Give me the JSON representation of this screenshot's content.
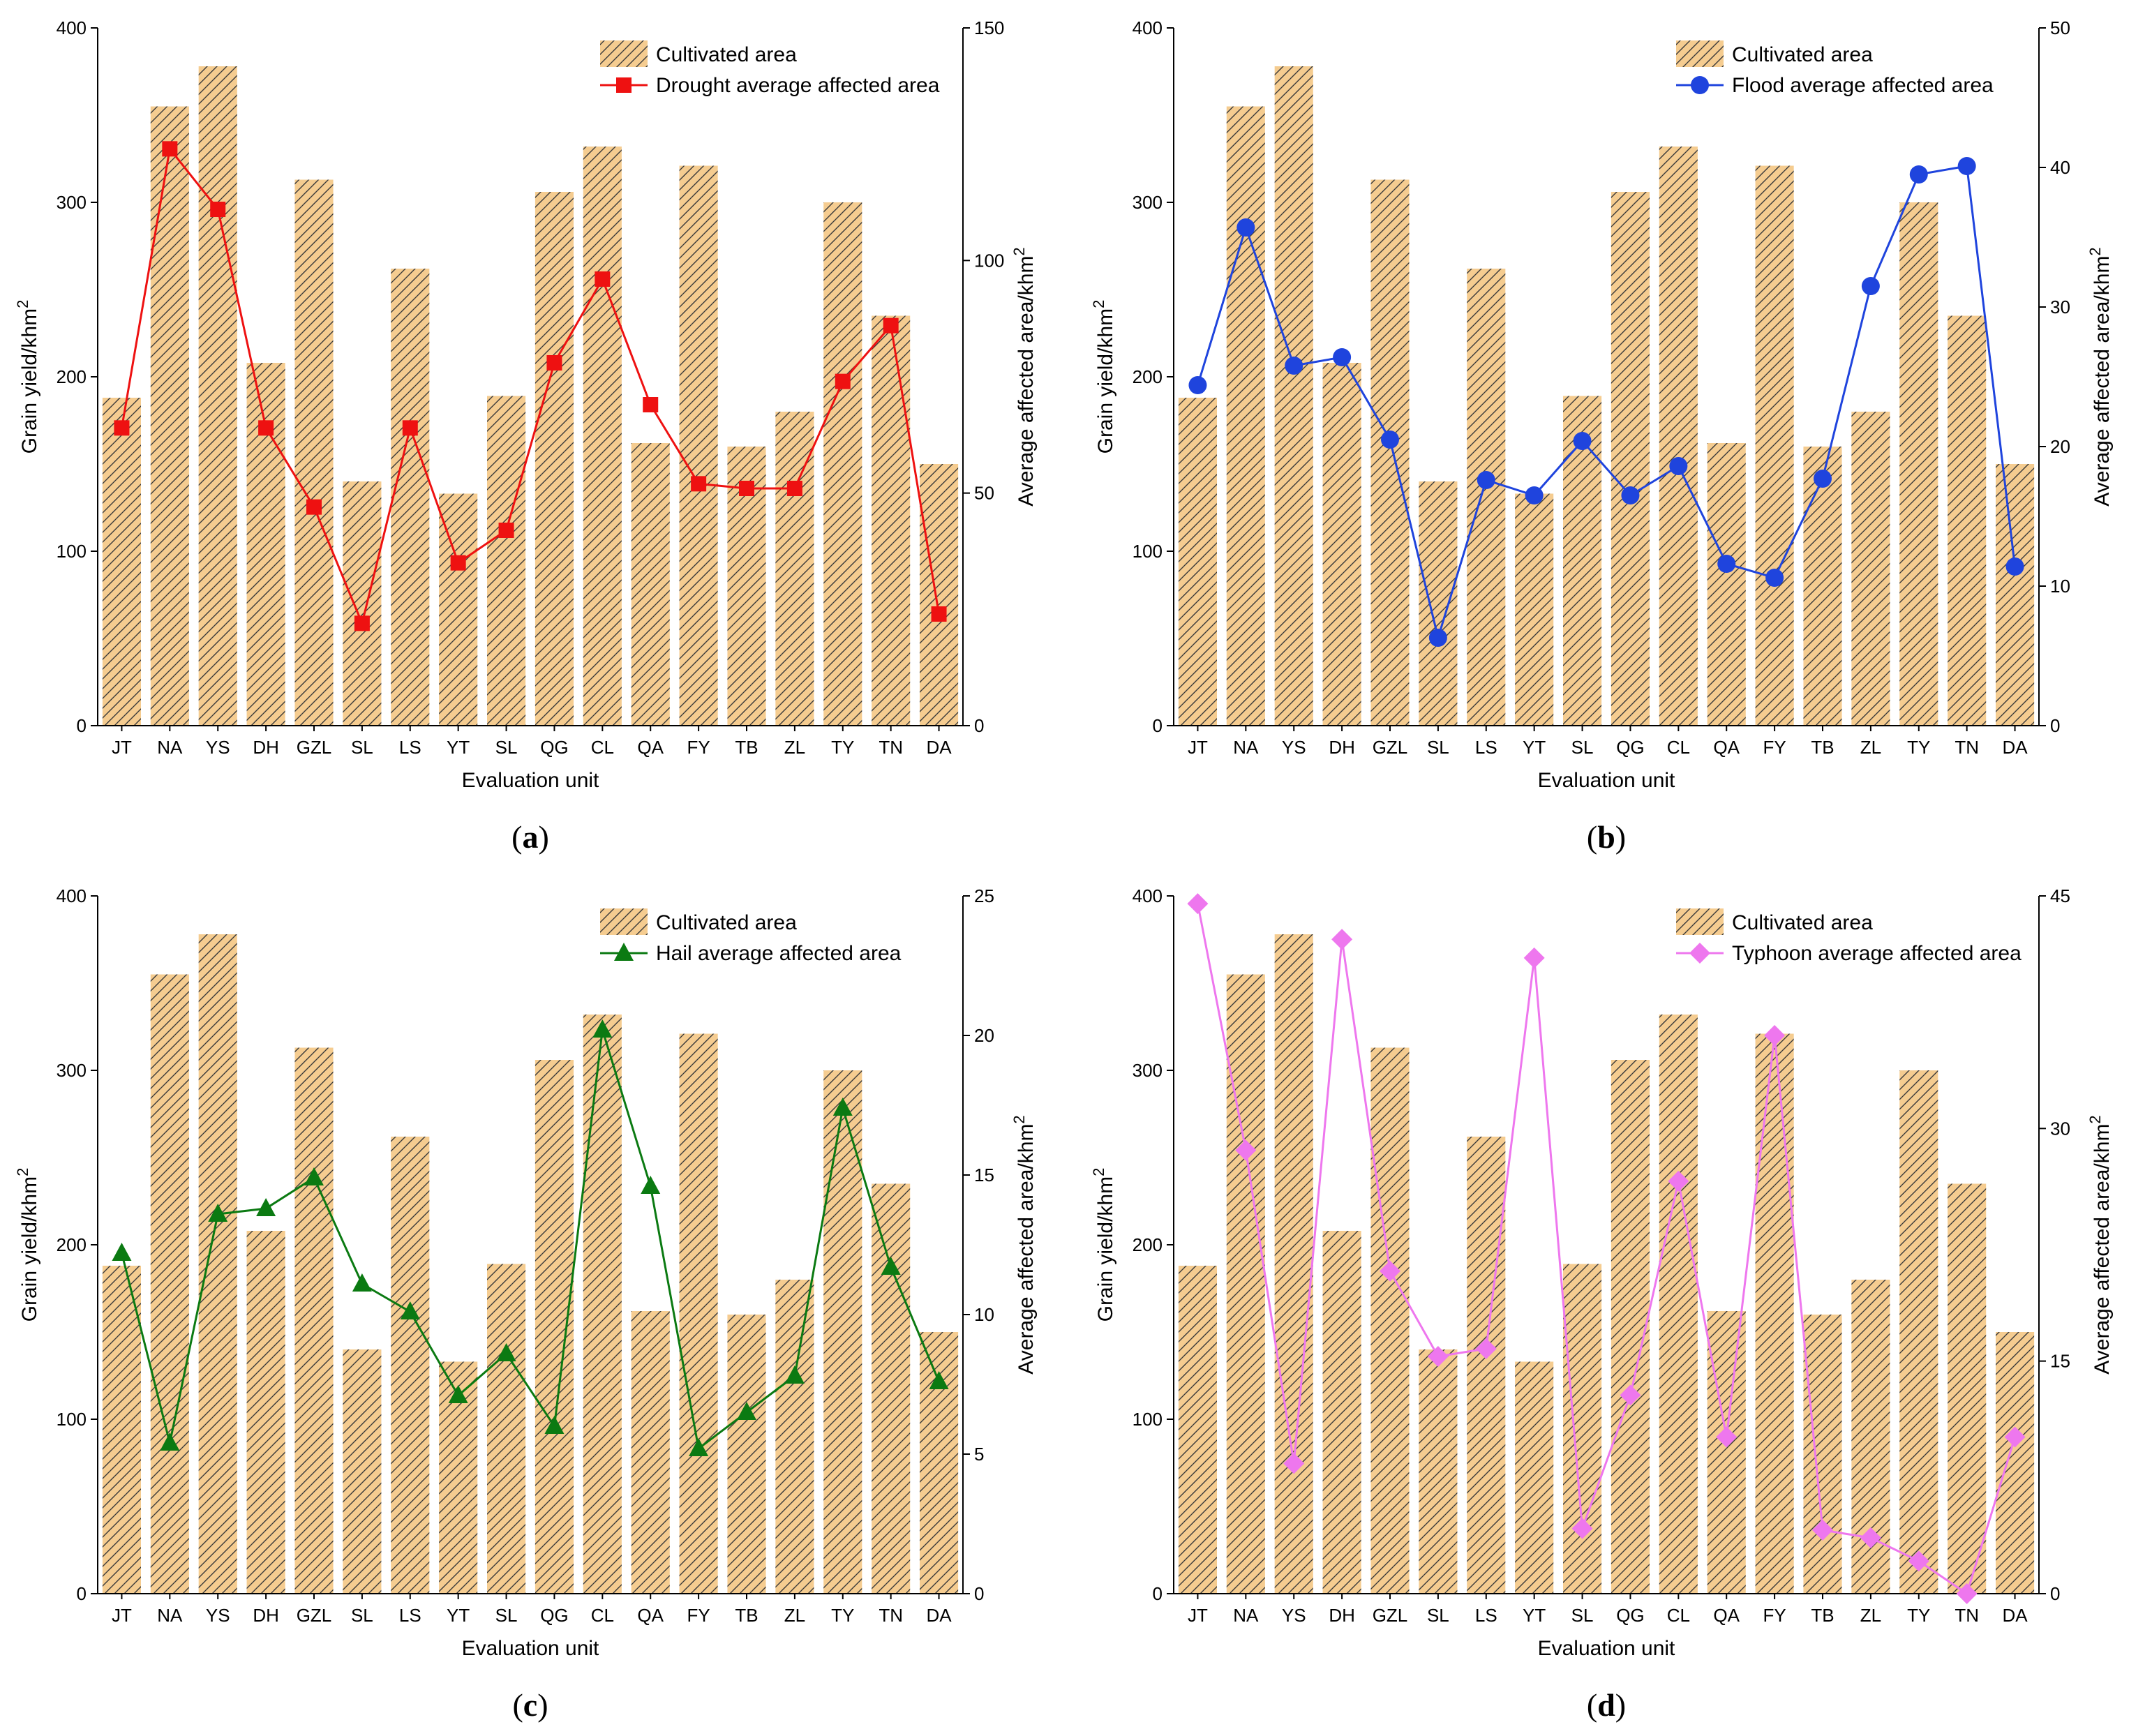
{
  "figure": {
    "panels": [
      {
        "id": "a",
        "caption": "(a)",
        "sub": "a"
      },
      {
        "id": "b",
        "caption": "(b)",
        "sub": "b"
      },
      {
        "id": "c",
        "caption": "(c)",
        "sub": "c"
      },
      {
        "id": "d",
        "caption": "(d)",
        "sub": "d"
      }
    ]
  },
  "chart_data": [
    {
      "id": "a",
      "type": "bar+line",
      "caption": "(a)",
      "categories": [
        "JT",
        "NA",
        "YS",
        "DH",
        "GZL",
        "SL",
        "LS",
        "YT",
        "SL",
        "QG",
        "CL",
        "QA",
        "FY",
        "TB",
        "ZL",
        "TY",
        "TN",
        "DA"
      ],
      "bar_series": {
        "name": "Cultivated area",
        "color": "#f5cc90",
        "values": [
          188,
          355,
          378,
          208,
          313,
          140,
          262,
          133,
          189,
          306,
          332,
          162,
          321,
          160,
          180,
          300,
          235,
          150
        ]
      },
      "line_series": {
        "name": "Drought average affected area",
        "color": "#ee1111",
        "marker": "square",
        "values": [
          64,
          124,
          111,
          64,
          47,
          22,
          64,
          35,
          42,
          78,
          96,
          69,
          52,
          51,
          51,
          74,
          86,
          24
        ]
      },
      "xlabel": "Evaluation unit",
      "ylabel_left": "Grain yield/khm",
      "ylabel_right": "Average affected area/khm",
      "ylabel_sup": "2",
      "ylim_left": [
        0,
        400
      ],
      "yticks_left": [
        "0",
        "100",
        "200",
        "300",
        "400"
      ],
      "ylim_right": [
        0,
        150
      ],
      "yticks_right": [
        "0",
        "50",
        "100",
        "150"
      ],
      "legend_position": "top-right"
    },
    {
      "id": "b",
      "type": "bar+line",
      "caption": "(b)",
      "categories": [
        "JT",
        "NA",
        "YS",
        "DH",
        "GZL",
        "SL",
        "LS",
        "YT",
        "SL",
        "QG",
        "CL",
        "QA",
        "FY",
        "TB",
        "ZL",
        "TY",
        "TN",
        "DA"
      ],
      "bar_series": {
        "name": "Cultivated area",
        "color": "#f5cc90",
        "values": [
          188,
          355,
          378,
          208,
          313,
          140,
          262,
          133,
          189,
          306,
          332,
          162,
          321,
          160,
          180,
          300,
          235,
          150
        ]
      },
      "line_series": {
        "name": "Flood average affected area",
        "color": "#1f44dd",
        "marker": "circle",
        "values": [
          24.4,
          35.7,
          25.8,
          26.4,
          20.5,
          6.3,
          17.6,
          16.5,
          20.4,
          16.5,
          18.6,
          11.6,
          10.6,
          17.7,
          31.5,
          39.5,
          40.1,
          11.4
        ]
      },
      "xlabel": "Evaluation unit",
      "ylabel_left": "Grain yield/khm",
      "ylabel_right": "Average affected area/khm",
      "ylabel_sup": "2",
      "ylim_left": [
        0,
        400
      ],
      "yticks_left": [
        "0",
        "100",
        "200",
        "300",
        "400"
      ],
      "ylim_right": [
        0,
        50
      ],
      "yticks_right": [
        "0",
        "10",
        "20",
        "30",
        "40",
        "50"
      ],
      "legend_position": "top-right"
    },
    {
      "id": "c",
      "type": "bar+line",
      "caption": "(c)",
      "categories": [
        "JT",
        "NA",
        "YS",
        "DH",
        "GZL",
        "SL",
        "LS",
        "YT",
        "SL",
        "QG",
        "CL",
        "QA",
        "FY",
        "TB",
        "ZL",
        "TY",
        "TN",
        "DA"
      ],
      "bar_series": {
        "name": "Cultivated area",
        "color": "#f5cc90",
        "values": [
          188,
          355,
          378,
          208,
          313,
          140,
          262,
          133,
          189,
          306,
          332,
          162,
          321,
          160,
          180,
          300,
          235,
          150
        ]
      },
      "line_series": {
        "name": "Hail average affected area",
        "color": "#0b7a12",
        "marker": "triangle",
        "values": [
          12.2,
          5.4,
          13.6,
          13.8,
          14.9,
          11.1,
          10.1,
          7.1,
          8.6,
          6.0,
          20.2,
          14.6,
          5.2,
          6.5,
          7.8,
          17.4,
          11.7,
          7.6
        ]
      },
      "xlabel": "Evaluation unit",
      "ylabel_left": "Grain yield/khm",
      "ylabel_right": "Average affected area/khm",
      "ylabel_sup": "2",
      "ylim_left": [
        0,
        400
      ],
      "yticks_left": [
        "0",
        "100",
        "200",
        "300",
        "400"
      ],
      "ylim_right": [
        0,
        25
      ],
      "yticks_right": [
        "0",
        "5",
        "10",
        "15",
        "20",
        "25"
      ],
      "legend_position": "top-right"
    },
    {
      "id": "d",
      "type": "bar+line",
      "caption": "(d)",
      "categories": [
        "JT",
        "NA",
        "YS",
        "DH",
        "GZL",
        "SL",
        "LS",
        "YT",
        "SL",
        "QG",
        "CL",
        "QA",
        "FY",
        "TB",
        "ZL",
        "TY",
        "TN",
        "DA"
      ],
      "bar_series": {
        "name": "Cultivated area",
        "color": "#f5cc90",
        "values": [
          188,
          355,
          378,
          208,
          313,
          140,
          262,
          133,
          189,
          306,
          332,
          162,
          321,
          160,
          180,
          300,
          235,
          150
        ]
      },
      "line_series": {
        "name": "Typhoon average affected area",
        "color": "#ee77ee",
        "marker": "diamond",
        "values": [
          44.5,
          28.6,
          8.4,
          42.2,
          20.8,
          15.3,
          15.8,
          41.0,
          4.2,
          12.8,
          26.6,
          10.1,
          36.0,
          4.1,
          3.6,
          2.1,
          0.0,
          10.1
        ]
      },
      "xlabel": "Evaluation unit",
      "ylabel_left": "Grain yield/khm",
      "ylabel_right": "Average affected area/khm",
      "ylabel_sup": "2",
      "ylim_left": [
        0,
        400
      ],
      "yticks_left": [
        "0",
        "100",
        "200",
        "300",
        "400"
      ],
      "ylim_right": [
        0,
        45
      ],
      "yticks_right": [
        "0",
        "15",
        "30",
        "45"
      ],
      "legend_position": "top-right"
    }
  ]
}
